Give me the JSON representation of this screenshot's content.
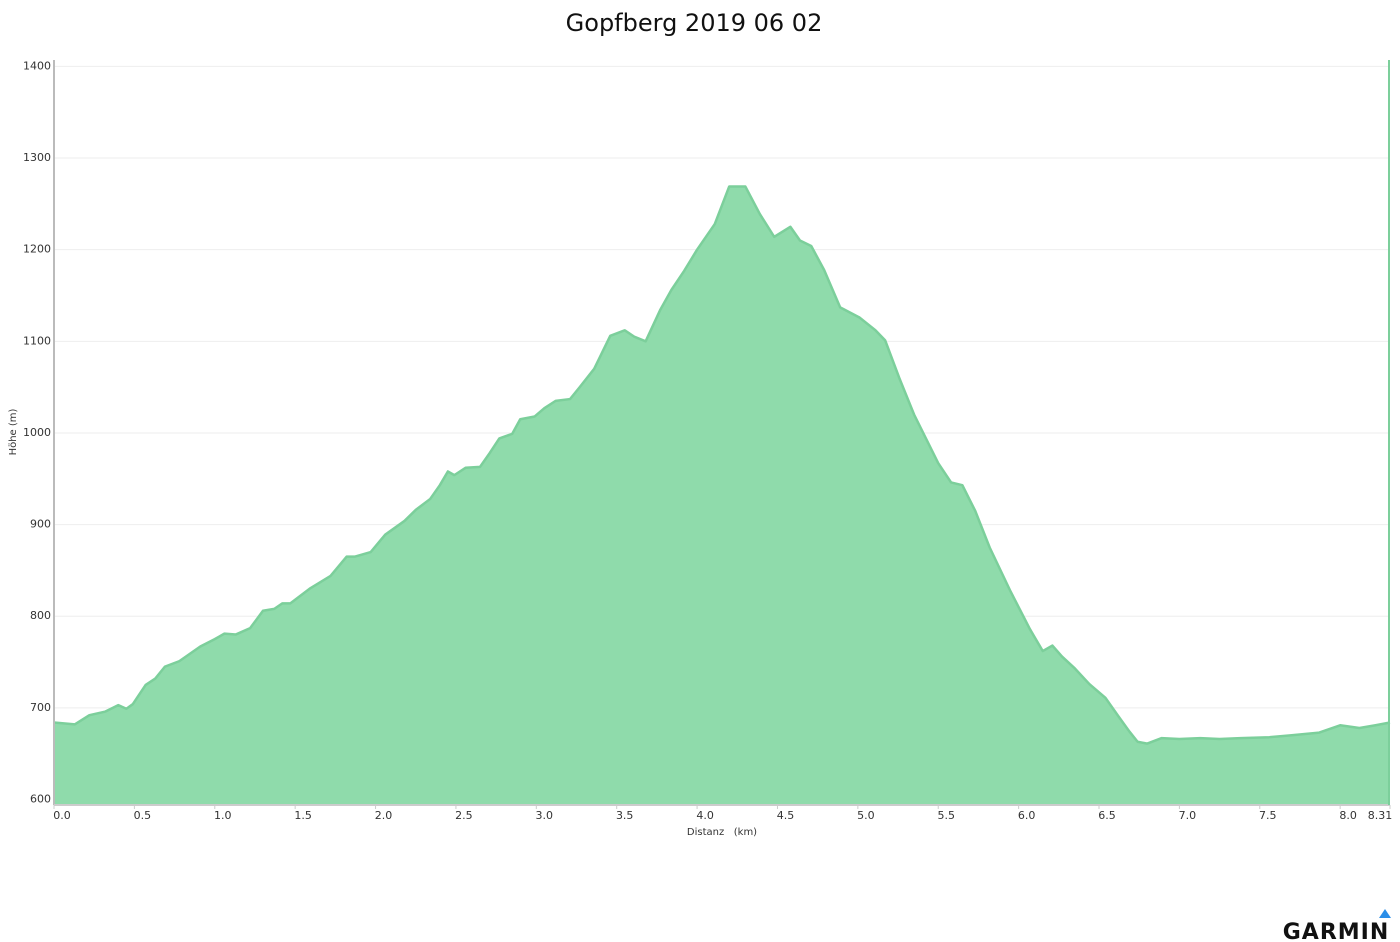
{
  "chart_data": {
    "type": "area",
    "title": "Gopfberg 2019 06 02",
    "xlabel": "Distanz   (km)",
    "ylabel": "Höhe (m)",
    "x": [
      0,
      0.13,
      0.22,
      0.32,
      0.4,
      0.45,
      0.49,
      0.57,
      0.63,
      0.69,
      0.78,
      0.91,
      1.0,
      1.06,
      1.13,
      1.22,
      1.3,
      1.37,
      1.42,
      1.47,
      1.59,
      1.72,
      1.82,
      1.87,
      1.97,
      2.06,
      2.18,
      2.25,
      2.34,
      2.4,
      2.45,
      2.49,
      2.56,
      2.65,
      2.71,
      2.77,
      2.85,
      2.9,
      2.99,
      3.05,
      3.12,
      3.21,
      3.27,
      3.36,
      3.46,
      3.55,
      3.61,
      3.68,
      3.77,
      3.84,
      3.92,
      4.0,
      4.11,
      4.2,
      4.3,
      4.39,
      4.48,
      4.58,
      4.64,
      4.71,
      4.79,
      4.89,
      5.01,
      5.11,
      5.17,
      5.26,
      5.35,
      5.5,
      5.58,
      5.65,
      5.73,
      5.82,
      5.95,
      6.07,
      6.15,
      6.21,
      6.27,
      6.35,
      6.44,
      6.54,
      6.62,
      6.69,
      6.74,
      6.8,
      6.89,
      7.0,
      7.13,
      7.25,
      7.38,
      7.56,
      7.69,
      7.87,
      8.0,
      8.12,
      8.22,
      8.31
    ],
    "values": [
      684,
      682,
      692,
      696,
      703,
      699,
      704,
      725,
      732,
      745,
      751,
      767,
      775,
      781,
      780,
      787,
      806,
      808,
      814,
      814,
      830,
      844,
      865,
      865,
      870,
      889,
      904,
      916,
      928,
      943,
      958,
      954,
      962,
      963,
      978,
      994,
      999,
      1015,
      1018,
      1027,
      1035,
      1037,
      1050,
      1070,
      1106,
      1112,
      1105,
      1100,
      1134,
      1156,
      1177,
      1200,
      1228,
      1269,
      1269,
      1239,
      1214,
      1225,
      1210,
      1204,
      1178,
      1137,
      1126,
      1112,
      1101,
      1059,
      1020,
      967,
      946,
      943,
      915,
      875,
      827,
      786,
      762,
      768,
      756,
      743,
      726,
      711,
      691,
      674,
      663,
      661,
      667,
      666,
      667,
      666,
      667,
      668,
      670,
      673,
      681,
      678,
      681,
      684
    ],
    "color": "#8fdbab",
    "line_color": "#7ccf9b",
    "xlim": [
      0,
      8.31
    ],
    "ylim": [
      594,
      1407
    ],
    "xticks": [
      {
        "value": 0,
        "label": "0.0"
      },
      0.5,
      {
        "value": 1,
        "label": "1.0"
      },
      1.5,
      {
        "value": 2,
        "label": "2.0"
      },
      2.5,
      {
        "value": 3,
        "label": "3.0"
      },
      3.5,
      {
        "value": 4,
        "label": "4.0"
      },
      4.5,
      {
        "value": 5,
        "label": "5.0"
      },
      5.5,
      {
        "value": 6,
        "label": "6.0"
      },
      6.5,
      {
        "value": 7,
        "label": "7.0"
      },
      7.5,
      {
        "value": 8,
        "label": "8.0"
      },
      8.31
    ],
    "yticks": [
      600,
      700,
      800,
      900,
      1000,
      1100,
      1200,
      1300,
      1400
    ],
    "grid": true
  },
  "logo": "GARMIN"
}
